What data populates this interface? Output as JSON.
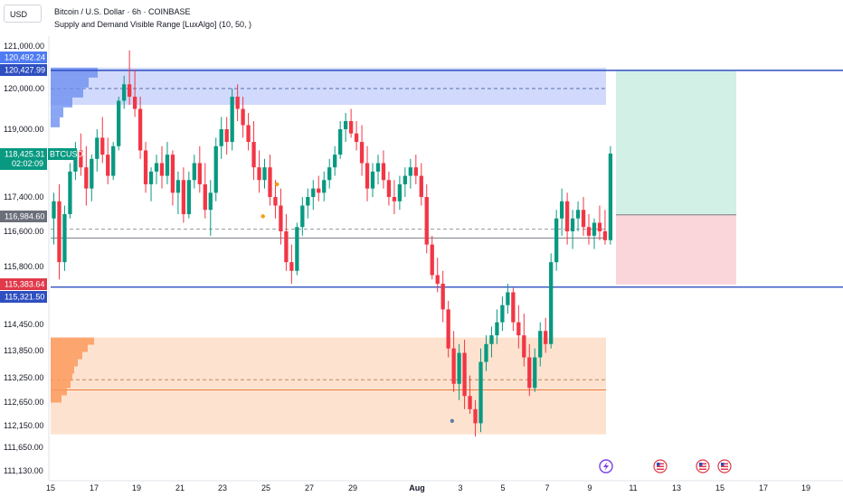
{
  "header": {
    "currency_button": "USD",
    "title": "Bitcoin / U.S. Dollar · 6h · COINBASE",
    "indicator": "Supply and Demand Visible Range [LuxAlgo] (10, 50, )"
  },
  "chart_data": {
    "type": "candlestick",
    "symbol": "BTCUSD",
    "ylim": [
      111130,
      121000
    ],
    "yticks": [
      121000,
      120000,
      119000,
      117400,
      116600,
      115800,
      114450,
      113850,
      113250,
      112650,
      112150,
      111650,
      111130
    ],
    "xtick_labels": [
      "15",
      "17",
      "19",
      "21",
      "23",
      "25",
      "27",
      "29",
      "Aug",
      "3",
      "5",
      "7",
      "9",
      "11",
      "13",
      "15",
      "17",
      "19"
    ],
    "price_labels": [
      {
        "value": "120,492.24",
        "color": "#4f7cf2"
      },
      {
        "value": "120,427.99",
        "color": "#2e4fbf"
      },
      {
        "value": "118,425.31",
        "color": "#089981",
        "tag": "BTCUSD",
        "countdown": "02:02:09"
      },
      {
        "value": "116,984.60",
        "color": "#6b6f7a"
      },
      {
        "value": "115,383.64",
        "color": "#e0394a"
      },
      {
        "value": "115,321.50",
        "color": "#2e4fbf"
      }
    ],
    "supply_zone": {
      "top": 120492.24,
      "bottom": 119600,
      "mid": 120000
    },
    "demand_zone": {
      "top": 114150,
      "bottom": 111950,
      "mid": 113200,
      "poc": 112950
    },
    "horizontal_lines": [
      {
        "value": 120427.99,
        "color": "#2e4fbf"
      },
      {
        "value": 115321.5,
        "color": "#2e4fbf"
      },
      {
        "value": 116450,
        "color": "#787b86"
      },
      {
        "value": 116650,
        "color": "#9598a1",
        "dashed": true
      }
    ],
    "position": {
      "entry": 116984.6,
      "target": 120410,
      "stop": 115383.64
    },
    "candles_start_day": 15,
    "candles_per_day": 4,
    "candles": [
      [
        116900,
        117500,
        116300,
        117300
      ],
      [
        117300,
        117700,
        115500,
        115900
      ],
      [
        115900,
        117200,
        115700,
        117000
      ],
      [
        117000,
        118200,
        116900,
        118000
      ],
      [
        118000,
        118700,
        117800,
        118500
      ],
      [
        118500,
        118900,
        117900,
        118100
      ],
      [
        118100,
        118600,
        117200,
        117600
      ],
      [
        117600,
        118400,
        117300,
        118300
      ],
      [
        118300,
        119000,
        118000,
        118800
      ],
      [
        118800,
        119300,
        118200,
        118400
      ],
      [
        118400,
        118800,
        117700,
        117900
      ],
      [
        117900,
        118700,
        117800,
        118600
      ],
      [
        118600,
        119800,
        118500,
        119700
      ],
      [
        119700,
        120300,
        119500,
        120100
      ],
      [
        120100,
        120900,
        119600,
        119800
      ],
      [
        119800,
        120450,
        119300,
        119500
      ],
      [
        119500,
        119800,
        118300,
        118500
      ],
      [
        118500,
        118700,
        117500,
        117700
      ],
      [
        117700,
        118100,
        117300,
        118000
      ],
      [
        118000,
        118400,
        117700,
        118200
      ],
      [
        118200,
        118600,
        117600,
        117900
      ],
      [
        117900,
        118700,
        117700,
        118400
      ],
      [
        118400,
        118500,
        117200,
        117500
      ],
      [
        117500,
        118000,
        117000,
        117800
      ],
      [
        117800,
        118100,
        116800,
        117000
      ],
      [
        117000,
        118000,
        116900,
        117800
      ],
      [
        117800,
        118400,
        117600,
        118200
      ],
      [
        118200,
        118600,
        117500,
        117700
      ],
      [
        117700,
        118200,
        116900,
        117100
      ],
      [
        117100,
        117800,
        116500,
        117500
      ],
      [
        117500,
        118800,
        117300,
        118600
      ],
      [
        118600,
        119300,
        118300,
        119000
      ],
      [
        119000,
        119300,
        118400,
        118700
      ],
      [
        118700,
        120000,
        118500,
        119800
      ],
      [
        119800,
        120100,
        119200,
        119500
      ],
      [
        119500,
        119800,
        118800,
        119100
      ],
      [
        119100,
        119400,
        118500,
        118700
      ],
      [
        118700,
        119200,
        117800,
        118100
      ],
      [
        118100,
        118500,
        117500,
        117800
      ],
      [
        117800,
        118300,
        117600,
        118100
      ],
      [
        118100,
        118400,
        117200,
        117400
      ],
      [
        117400,
        117800,
        116900,
        117200
      ],
      [
        117200,
        117600,
        116300,
        116600
      ],
      [
        116600,
        117000,
        115700,
        115900
      ],
      [
        115900,
        116300,
        115400,
        115700
      ],
      [
        115700,
        116800,
        115600,
        116700
      ],
      [
        116700,
        117400,
        116500,
        117200
      ],
      [
        117200,
        117600,
        116900,
        117400
      ],
      [
        117400,
        117800,
        117100,
        117600
      ],
      [
        117600,
        117900,
        117300,
        117500
      ],
      [
        117500,
        118000,
        117300,
        117800
      ],
      [
        117800,
        118300,
        117600,
        118100
      ],
      [
        118100,
        118600,
        117900,
        118400
      ],
      [
        118400,
        119200,
        118300,
        119000
      ],
      [
        119000,
        119400,
        118700,
        119200
      ],
      [
        119200,
        119500,
        118800,
        118900
      ],
      [
        118900,
        119200,
        118500,
        118700
      ],
      [
        118700,
        119100,
        117900,
        118200
      ],
      [
        118200,
        118600,
        117300,
        117600
      ],
      [
        117600,
        118200,
        117400,
        118000
      ],
      [
        118000,
        118400,
        117700,
        118200
      ],
      [
        118200,
        118500,
        117600,
        117800
      ],
      [
        117800,
        118000,
        117200,
        117400
      ],
      [
        117400,
        117800,
        117000,
        117300
      ],
      [
        117300,
        117900,
        117100,
        117700
      ],
      [
        117700,
        118100,
        117400,
        117900
      ],
      [
        117900,
        118300,
        117600,
        118100
      ],
      [
        118100,
        118400,
        117700,
        117900
      ],
      [
        117900,
        118200,
        117200,
        117400
      ],
      [
        117400,
        117700,
        116100,
        116300
      ],
      [
        116300,
        116500,
        115500,
        115600
      ],
      [
        115600,
        116000,
        115200,
        115400
      ],
      [
        115400,
        115700,
        114500,
        114800
      ],
      [
        114800,
        115000,
        113700,
        113900
      ],
      [
        113900,
        114300,
        112900,
        113100
      ],
      [
        113100,
        114000,
        112700,
        113800
      ],
      [
        113800,
        114100,
        112500,
        112800
      ],
      [
        112800,
        113300,
        112400,
        112500
      ],
      [
        112500,
        112700,
        111900,
        112200
      ],
      [
        112200,
        113900,
        112000,
        113600
      ],
      [
        113600,
        114200,
        113400,
        114000
      ],
      [
        114000,
        114400,
        113700,
        114200
      ],
      [
        114200,
        114800,
        114000,
        114500
      ],
      [
        114500,
        115100,
        114300,
        114900
      ],
      [
        114900,
        115400,
        114700,
        115200
      ],
      [
        115200,
        115300,
        114300,
        114500
      ],
      [
        114500,
        114900,
        113900,
        114200
      ],
      [
        114200,
        114700,
        113500,
        113700
      ],
      [
        113700,
        114000,
        112800,
        113000
      ],
      [
        113000,
        113900,
        112900,
        113700
      ],
      [
        113700,
        114500,
        113500,
        114300
      ],
      [
        114300,
        114600,
        113800,
        114000
      ],
      [
        114000,
        116100,
        113900,
        115900
      ],
      [
        115900,
        117100,
        115700,
        116900
      ],
      [
        116900,
        117600,
        116500,
        117300
      ],
      [
        117300,
        117500,
        116300,
        116600
      ],
      [
        116600,
        117100,
        116200,
        116900
      ],
      [
        116900,
        117300,
        116600,
        117100
      ],
      [
        117100,
        117400,
        116500,
        116700
      ],
      [
        116700,
        117000,
        116300,
        116500
      ],
      [
        116500,
        116900,
        116200,
        116800
      ],
      [
        116800,
        117200,
        116400,
        116600
      ],
      [
        116600,
        117100,
        116300,
        116400
      ],
      [
        116400,
        118600,
        116300,
        118425.31
      ]
    ]
  },
  "icons": {
    "lightning_badge_color": "#7b3fe4",
    "flag_badge_color": "#e0394a"
  }
}
